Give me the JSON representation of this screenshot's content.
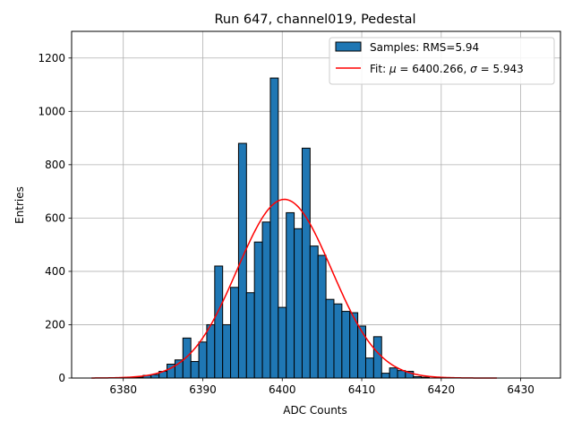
{
  "chart_data": {
    "type": "bar",
    "title": "Run 647, channel019, Pedestal",
    "xlabel": "ADC Counts",
    "ylabel": "Entries",
    "xlim": [
      6373.5,
      6435
    ],
    "ylim": [
      0,
      1300
    ],
    "xticks": [
      6380,
      6390,
      6400,
      6410,
      6420,
      6430
    ],
    "yticks": [
      0,
      200,
      400,
      600,
      800,
      1000,
      1200
    ],
    "grid": true,
    "legend_position": "top-right",
    "bar_color": "#1f77b4",
    "fit_color": "#ff0000",
    "bins": [
      6381,
      6382,
      6383,
      6384,
      6385,
      6386,
      6387,
      6388,
      6389,
      6390,
      6391,
      6392,
      6393,
      6394,
      6395,
      6396,
      6397,
      6398,
      6399,
      6400,
      6401,
      6402,
      6403,
      6404,
      6405,
      6406,
      6407,
      6408,
      6409,
      6410,
      6411,
      6412,
      6413,
      6414,
      6415,
      6416,
      6417,
      6418
    ],
    "bin_width": 1,
    "values": [
      3,
      3,
      10,
      13,
      25,
      52,
      68,
      150,
      62,
      135,
      200,
      420,
      200,
      340,
      880,
      320,
      510,
      585,
      1125,
      265,
      620,
      560,
      862,
      495,
      460,
      295,
      278,
      250,
      245,
      195,
      75,
      155,
      18,
      38,
      28,
      25,
      5,
      3
    ],
    "fit": {
      "mu": 6400.266,
      "sigma": 5.943,
      "amplitude": 670,
      "x_range": [
        6376,
        6427
      ]
    },
    "legend": [
      {
        "label": "Samples: RMS=5.94",
        "kind": "patch"
      },
      {
        "label_parts": [
          "Fit: ",
          "μ",
          " = 6400.266, ",
          "σ",
          " = 5.943"
        ],
        "kind": "line"
      }
    ]
  }
}
